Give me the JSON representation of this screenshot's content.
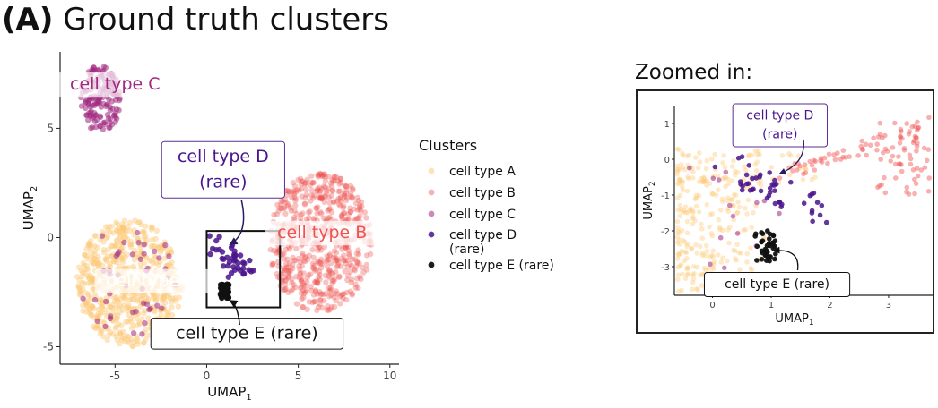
{
  "panel": {
    "tag": "(A)",
    "title": "Ground truth clusters"
  },
  "zoom": {
    "title": "Zoomed in:"
  },
  "legend": {
    "title": "Clusters",
    "entries": [
      {
        "label": "cell type A",
        "color": "#fdc776"
      },
      {
        "label": "cell type B",
        "color": "#ef5350"
      },
      {
        "label": "cell type C",
        "color": "#a1287f"
      },
      {
        "label": "cell type D",
        "label2": "(rare)",
        "color": "#4a148c"
      },
      {
        "label": "cell type E (rare)",
        "color": "#111111"
      }
    ]
  },
  "chart_data": [
    {
      "type": "scatter",
      "xlabel": "UMAP",
      "xlabel_sub": "1",
      "ylabel": "UMAP",
      "ylabel_sub": "2",
      "xlim": [
        -8,
        10.5
      ],
      "ylim": [
        -5.8,
        8.5
      ],
      "xticks": [
        -5,
        0,
        5,
        10
      ],
      "yticks": [
        -5,
        0,
        5
      ],
      "clusters": [
        {
          "name": "cell type A",
          "center": [
            -4.2,
            -2.1
          ],
          "spread": [
            2.9,
            2.9
          ],
          "count": 600
        },
        {
          "name": "cell type B",
          "center": [
            6.2,
            -0.2
          ],
          "spread": [
            2.8,
            3.2
          ],
          "count": 600
        },
        {
          "name": "cell type C",
          "center": [
            -5.8,
            6.3
          ],
          "spread": [
            1.1,
            1.6
          ],
          "count": 160
        },
        {
          "name": "cell type D (rare)",
          "center": [
            1.1,
            -0.9
          ],
          "spread": [
            1.0,
            0.8
          ],
          "count": 40
        },
        {
          "name": "cell type E (rare)",
          "center": [
            1.0,
            -2.45
          ],
          "spread": [
            0.25,
            0.35
          ],
          "count": 40
        }
      ],
      "zoom_box": {
        "x": [
          0,
          4
        ],
        "y": [
          -3.2,
          0.3
        ]
      },
      "labels": [
        {
          "text": "cell type C",
          "x": -5.0,
          "y": 7.0,
          "style": "fill"
        },
        {
          "text": "cell type A",
          "x": -3.0,
          "y": -2.0,
          "style": "fill"
        },
        {
          "text": "cell type B",
          "x": 6.3,
          "y": 0.2,
          "style": "fill"
        },
        {
          "text": "cell type D",
          "text2": "(rare)",
          "x": 0.9,
          "y": 3.1,
          "style": "box"
        },
        {
          "text": "cell type E (rare)",
          "x": 2.2,
          "y": -4.4,
          "style": "box"
        }
      ]
    },
    {
      "type": "scatter",
      "xlabel": "UMAP",
      "xlabel_sub": "1",
      "ylabel": "UMAP",
      "ylabel_sub": "2",
      "xlim": [
        -0.65,
        3.75
      ],
      "ylim": [
        -3.8,
        1.5
      ],
      "xticks": [
        0,
        1,
        2,
        3
      ],
      "yticks": [
        -3,
        -2,
        -1,
        0,
        1
      ],
      "labels": [
        {
          "text": "cell type D",
          "text2": "(rare)",
          "x": 1.15,
          "y": 0.95,
          "style": "box"
        },
        {
          "text": "cell type E (rare)",
          "x": 1.1,
          "y": -3.5,
          "style": "box"
        }
      ]
    }
  ]
}
